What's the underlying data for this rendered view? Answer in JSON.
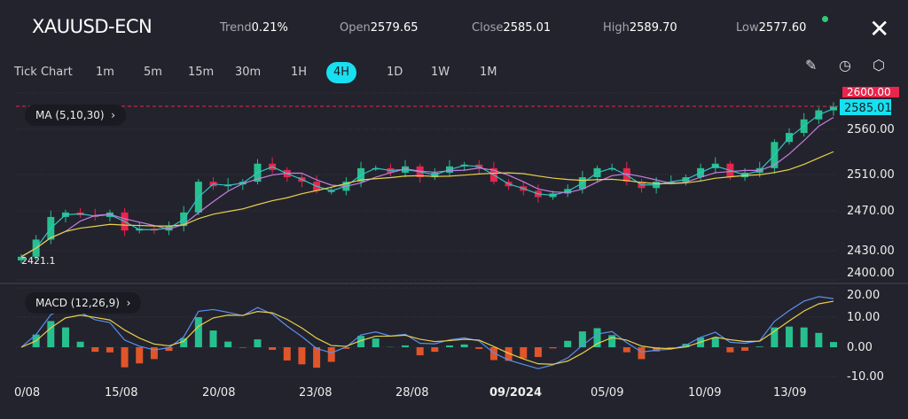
{
  "header": {
    "symbol": "XAUUSD-ECN",
    "stats": [
      {
        "k": "Trend",
        "v": "0.21%"
      },
      {
        "k": "Open",
        "v": "2579.65"
      },
      {
        "k": "Close",
        "v": "2585.01"
      },
      {
        "k": "High",
        "v": "2589.70"
      },
      {
        "k": "Low",
        "v": "2577.60"
      }
    ],
    "status_color": "#2ecc71",
    "close_icon": "close-icon"
  },
  "timeframes": [
    "Tick Chart",
    "1m",
    "5m",
    "15m",
    "30m",
    "1H",
    "4H",
    "1D",
    "1W",
    "1M"
  ],
  "active_timeframe": "4H",
  "tools": [
    {
      "name": "draw-icon",
      "glyph": "✎"
    },
    {
      "name": "timer-icon",
      "glyph": "◷"
    },
    {
      "name": "settings-icon",
      "glyph": "⬡"
    }
  ],
  "indicators": {
    "ma": "MA (5,10,30)",
    "macd": "MACD (12,26,9)",
    "chevron": "›"
  },
  "colors": {
    "up": "#26c08f",
    "down": "#e8254c",
    "ma5": "#2ec4c4",
    "ma10": "#c37fe0",
    "ma30": "#e8d04a",
    "dif": "#5b8ff0",
    "dea": "#e8d04a",
    "hist_neg": "#e0552a",
    "current": "#17e0f0"
  },
  "chart_data": {
    "type": "candlestick",
    "price_axis": {
      "ticks": [
        "2560.00",
        "2510.00",
        "2470.00",
        "2430.00",
        "2400.00"
      ],
      "top_label": "2600.00",
      "current_label": "2585.01",
      "current": 2585.01
    },
    "low_marker": "2421.1",
    "macd_axis": {
      "ticks": [
        "20.00",
        "10.00",
        "0.00",
        "-10.00"
      ]
    },
    "x_labels": [
      "0/08",
      "15/08",
      "20/08",
      "23/08",
      "28/08",
      "09/2024",
      "05/09",
      "10/09",
      "13/09"
    ],
    "closes": [
      2419,
      2438,
      2463,
      2468,
      2465,
      2463,
      2468,
      2448,
      2450,
      2448,
      2453,
      2468,
      2502,
      2497,
      2499,
      2502,
      2522,
      2515,
      2507,
      2502,
      2492,
      2492,
      2502,
      2517,
      2517,
      2512,
      2519,
      2507,
      2512,
      2519,
      2521,
      2517,
      2502,
      2497,
      2492,
      2485,
      2489,
      2494,
      2507,
      2517,
      2517,
      2502,
      2495,
      2502,
      2502,
      2507,
      2517,
      2522,
      2507,
      2512,
      2517,
      2546,
      2556,
      2571,
      2581,
      2585.01
    ]
  }
}
